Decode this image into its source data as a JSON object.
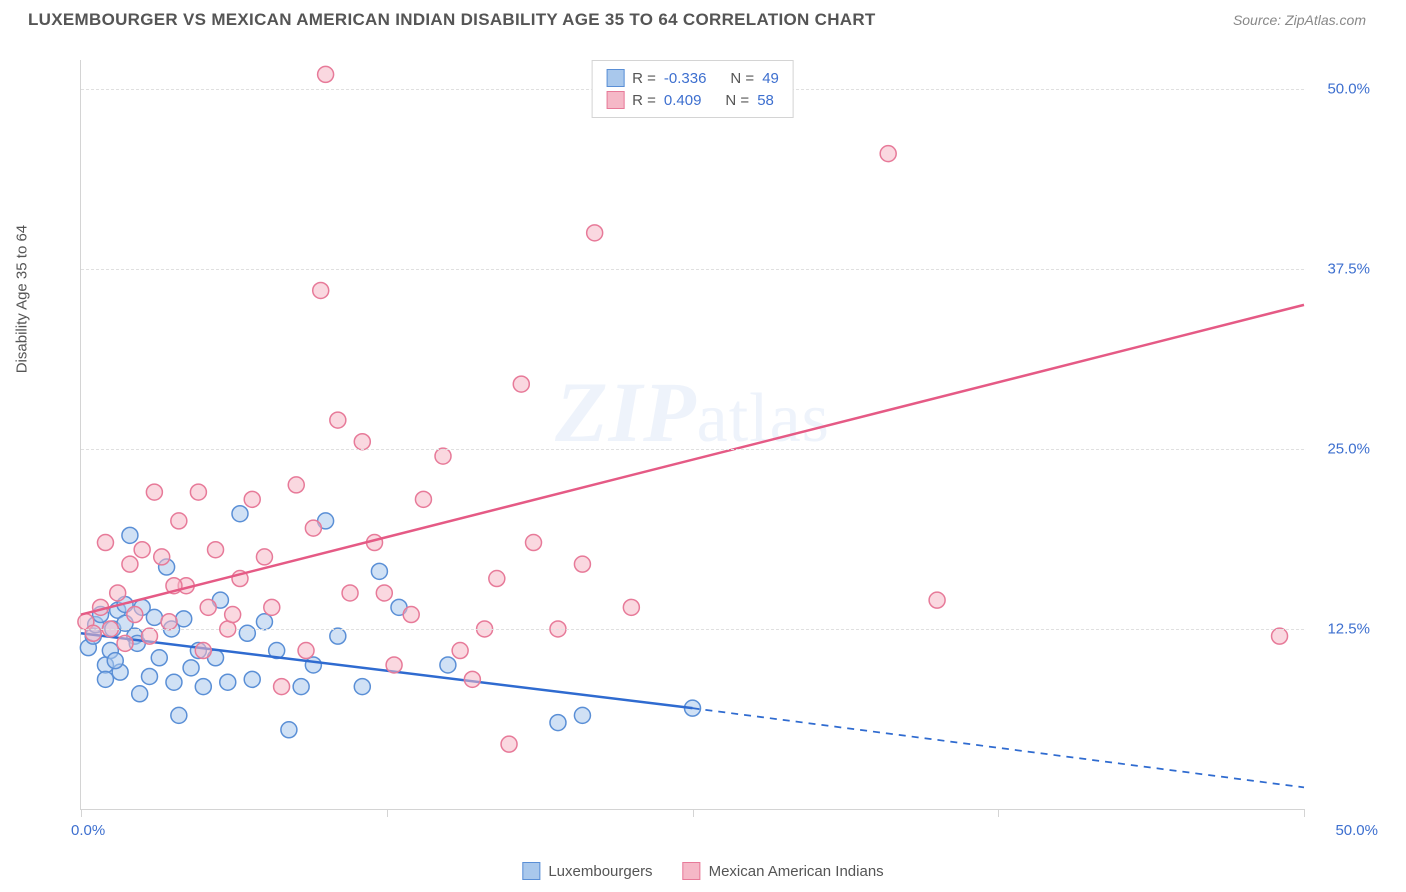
{
  "header": {
    "title": "LUXEMBOURGER VS MEXICAN AMERICAN INDIAN DISABILITY AGE 35 TO 64 CORRELATION CHART",
    "source": "Source: ZipAtlas.com"
  },
  "chart": {
    "type": "scatter",
    "ylabel": "Disability Age 35 to 64",
    "watermark": {
      "part1": "ZIP",
      "part2": "atlas"
    },
    "xlim": [
      0,
      50
    ],
    "ylim": [
      0,
      52
    ],
    "xticks": [
      0,
      12.5,
      25,
      37.5,
      50
    ],
    "yticks": [
      12.5,
      25.0,
      37.5,
      50.0
    ],
    "ytick_labels": [
      "12.5%",
      "25.0%",
      "37.5%",
      "50.0%"
    ],
    "xmin_label": "0.0%",
    "xmax_label": "50.0%",
    "grid_color": "#e0e0e0",
    "border_color": "#d4d4d4",
    "background_color": "#ffffff",
    "marker_radius": 8,
    "marker_stroke_width": 1.5,
    "line_width": 2.5,
    "series": [
      {
        "id": "lux",
        "label": "Luxembourgers",
        "fill": "#a9c8ec",
        "stroke": "#5a8fd6",
        "fill_opacity": 0.55,
        "R": "-0.336",
        "N": "49",
        "regression": {
          "x1": 0,
          "y1": 12.2,
          "x2": 25,
          "y2": 7.0,
          "solid_until_x": 25,
          "dash_to_x": 50,
          "dash_y": 1.5,
          "line_color": "#2f6bd0"
        },
        "points": [
          [
            0.3,
            11.2
          ],
          [
            0.5,
            12.0
          ],
          [
            0.6,
            12.8
          ],
          [
            0.8,
            13.5
          ],
          [
            1.0,
            10.0
          ],
          [
            1.2,
            11.0
          ],
          [
            1.3,
            12.5
          ],
          [
            1.5,
            13.8
          ],
          [
            1.6,
            9.5
          ],
          [
            1.8,
            14.2
          ],
          [
            2.0,
            19.0
          ],
          [
            2.2,
            12.0
          ],
          [
            2.4,
            8.0
          ],
          [
            2.5,
            14.0
          ],
          [
            2.8,
            9.2
          ],
          [
            3.0,
            13.3
          ],
          [
            3.2,
            10.5
          ],
          [
            3.5,
            16.8
          ],
          [
            3.7,
            12.5
          ],
          [
            4.0,
            6.5
          ],
          [
            4.2,
            13.2
          ],
          [
            4.5,
            9.8
          ],
          [
            4.8,
            11.0
          ],
          [
            5.0,
            8.5
          ],
          [
            5.5,
            10.5
          ],
          [
            6.0,
            8.8
          ],
          [
            6.5,
            20.5
          ],
          [
            7.0,
            9.0
          ],
          [
            7.5,
            13.0
          ],
          [
            8.0,
            11.0
          ],
          [
            8.5,
            5.5
          ],
          [
            9.5,
            10.0
          ],
          [
            10.0,
            20.0
          ],
          [
            10.5,
            12.0
          ],
          [
            11.5,
            8.5
          ],
          [
            12.2,
            16.5
          ],
          [
            13.0,
            14.0
          ],
          [
            15.0,
            10.0
          ],
          [
            19.5,
            6.0
          ],
          [
            20.5,
            6.5
          ],
          [
            25.0,
            7.0
          ],
          [
            1.0,
            9.0
          ],
          [
            1.4,
            10.3
          ],
          [
            1.8,
            12.9
          ],
          [
            2.3,
            11.5
          ],
          [
            3.8,
            8.8
          ],
          [
            5.7,
            14.5
          ],
          [
            6.8,
            12.2
          ],
          [
            9.0,
            8.5
          ]
        ]
      },
      {
        "id": "mex",
        "label": "Mexican American Indians",
        "fill": "#f5b8c7",
        "stroke": "#e77a99",
        "fill_opacity": 0.55,
        "R": "0.409",
        "N": "58",
        "regression": {
          "x1": 0,
          "y1": 13.5,
          "x2": 50,
          "y2": 35.0,
          "solid_until_x": 50,
          "line_color": "#e55a85"
        },
        "points": [
          [
            0.2,
            13.0
          ],
          [
            0.5,
            12.2
          ],
          [
            0.8,
            14.0
          ],
          [
            1.0,
            18.5
          ],
          [
            1.2,
            12.5
          ],
          [
            1.5,
            15.0
          ],
          [
            1.8,
            11.5
          ],
          [
            2.0,
            17.0
          ],
          [
            2.2,
            13.5
          ],
          [
            2.5,
            18.0
          ],
          [
            2.8,
            12.0
          ],
          [
            3.0,
            22.0
          ],
          [
            3.3,
            17.5
          ],
          [
            3.6,
            13.0
          ],
          [
            4.0,
            20.0
          ],
          [
            4.3,
            15.5
          ],
          [
            4.8,
            22.0
          ],
          [
            5.2,
            14.0
          ],
          [
            5.5,
            18.0
          ],
          [
            6.0,
            12.5
          ],
          [
            6.5,
            16.0
          ],
          [
            7.0,
            21.5
          ],
          [
            7.8,
            14.0
          ],
          [
            8.2,
            8.5
          ],
          [
            8.8,
            22.5
          ],
          [
            9.2,
            11.0
          ],
          [
            9.8,
            36.0
          ],
          [
            10.0,
            51.0
          ],
          [
            10.5,
            27.0
          ],
          [
            11.0,
            15.0
          ],
          [
            11.5,
            25.5
          ],
          [
            12.0,
            18.5
          ],
          [
            12.8,
            10.0
          ],
          [
            13.5,
            13.5
          ],
          [
            14.0,
            21.5
          ],
          [
            14.8,
            24.5
          ],
          [
            15.5,
            11.0
          ],
          [
            16.0,
            9.0
          ],
          [
            17.0,
            16.0
          ],
          [
            17.5,
            4.5
          ],
          [
            18.0,
            29.5
          ],
          [
            18.5,
            18.5
          ],
          [
            19.5,
            12.5
          ],
          [
            20.5,
            17.0
          ],
          [
            21.0,
            40.0
          ],
          [
            22.0,
            50.5
          ],
          [
            22.5,
            14.0
          ],
          [
            25.0,
            51.0
          ],
          [
            33.0,
            45.5
          ],
          [
            35.0,
            14.5
          ],
          [
            49.0,
            12.0
          ],
          [
            3.8,
            15.5
          ],
          [
            5.0,
            11.0
          ],
          [
            6.2,
            13.5
          ],
          [
            7.5,
            17.5
          ],
          [
            9.5,
            19.5
          ],
          [
            12.4,
            15.0
          ],
          [
            16.5,
            12.5
          ]
        ]
      }
    ]
  },
  "legend_top": {
    "rows": [
      {
        "swatch_fill": "#a9c8ec",
        "swatch_stroke": "#5a8fd6",
        "R_label": "R =",
        "R": "-0.336",
        "N_label": "N =",
        "N": "49"
      },
      {
        "swatch_fill": "#f5b8c7",
        "swatch_stroke": "#e77a99",
        "R_label": "R =",
        "R": "0.409",
        "N_label": "N =",
        "N": "58"
      }
    ]
  },
  "legend_bottom": [
    {
      "swatch_fill": "#a9c8ec",
      "swatch_stroke": "#5a8fd6",
      "label": "Luxembourgers"
    },
    {
      "swatch_fill": "#f5b8c7",
      "swatch_stroke": "#e77a99",
      "label": "Mexican American Indians"
    }
  ]
}
